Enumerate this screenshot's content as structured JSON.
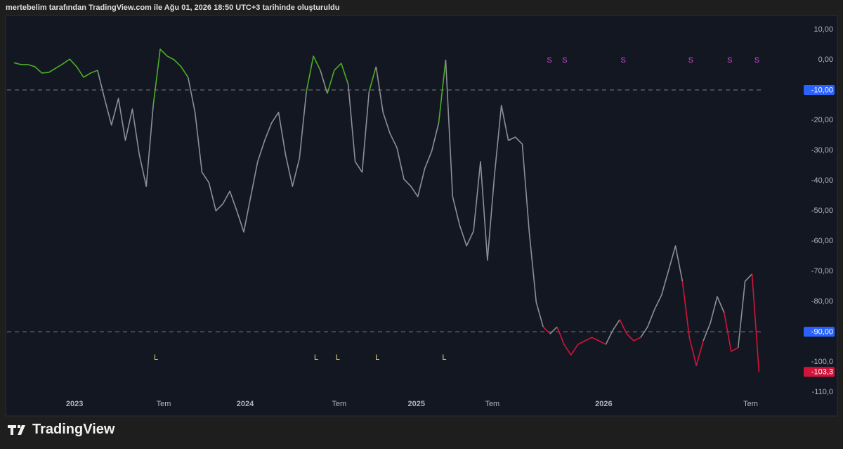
{
  "header": {
    "text": "mertebelim tarafından TradingView.com ile Ağu 01, 2026 18:50 UTC+3 tarihinde oluşturuldu"
  },
  "footer": {
    "brand": "TradingView"
  },
  "chart_data": {
    "type": "line",
    "values": [
      -1,
      -1.6,
      -1.6,
      -2.3,
      -4.4,
      -4.2,
      -2.8,
      -1.4,
      0.2,
      -2.3,
      -5.8,
      -4.4,
      -3.5,
      -12.8,
      -21.6,
      -12.8,
      -26.7,
      -16.3,
      -31.4,
      -41.9,
      -15.1,
      3.5,
      1.2,
      0,
      -2.3,
      -5.8,
      -17.4,
      -37.2,
      -40.7,
      -50,
      -47.7,
      -43.5,
      -50,
      -57,
      -45.3,
      -33.7,
      -26.7,
      -20.9,
      -17.4,
      -31.4,
      -41.9,
      -32.6,
      -10.5,
      1.2,
      -3.5,
      -11.2,
      -3.5,
      -1.2,
      -8.1,
      -33.7,
      -37.2,
      -10.5,
      -2.3,
      -17.4,
      -24.4,
      -29.1,
      -39.5,
      -41.9,
      -45.3,
      -36,
      -30.2,
      -20.9,
      0,
      -45.3,
      -54.7,
      -61.6,
      -56.7,
      -33.7,
      -66.3,
      -38.4,
      -15.1,
      -26.7,
      -25.6,
      -27.9,
      -57,
      -80.2,
      -88.4,
      -90.7,
      -88.4,
      -94.2,
      -97.7,
      -94.2,
      -93,
      -91.9,
      -93,
      -94.2,
      -89.5,
      -86,
      -90.7,
      -93,
      -91.9,
      -88.4,
      -82.6,
      -77.9,
      -69.8,
      -61.6,
      -73.3,
      -91.9,
      -101.2,
      -93,
      -87.2,
      -78.4,
      -83.7,
      -96.5,
      -95.3,
      -73.3,
      -70.9,
      -103.3
    ],
    "last_label": "-103,3",
    "upper": -10,
    "lower": -90,
    "colors": {
      "up": "#4caf22",
      "mid": "#8c8f96",
      "down": "#d1143a"
    },
    "hlines": [
      -10,
      -90
    ],
    "price_labels": [
      {
        "value": -10,
        "label": "-10,00",
        "color": "#2962ff"
      },
      {
        "value": -90,
        "label": "-90,00",
        "color": "#2962ff"
      }
    ],
    "xlim": [
      -1,
      112
    ],
    "xticks": [
      {
        "value": 8.7,
        "label": "2023"
      },
      {
        "value": 21.5,
        "label": "Tem"
      },
      {
        "value": 33.2,
        "label": "2024"
      },
      {
        "value": 46.7,
        "label": "Tem"
      },
      {
        "value": 57.8,
        "label": "2025"
      },
      {
        "value": 68.7,
        "label": "Tem"
      },
      {
        "value": 84.7,
        "label": "2026"
      },
      {
        "value": 105.8,
        "label": "Tem"
      }
    ],
    "ylim": [
      14.65,
      -111.6
    ],
    "yticks": [
      {
        "value": 10,
        "label": "10,00"
      },
      {
        "value": 0,
        "label": "0,00"
      },
      {
        "value": -10,
        "label": "-10,00"
      },
      {
        "value": -20,
        "label": "-20,00"
      },
      {
        "value": -30,
        "label": "-30,00"
      },
      {
        "value": -40,
        "label": "-40,00"
      },
      {
        "value": -50,
        "label": "-50,00"
      },
      {
        "value": -60,
        "label": "-60,00"
      },
      {
        "value": -70,
        "label": "-70,00"
      },
      {
        "value": -80,
        "label": "-80,00"
      },
      {
        "value": -90,
        "label": "-90,00"
      },
      {
        "value": -100,
        "label": "-100,0"
      },
      {
        "value": -110,
        "label": "-110,0"
      }
    ],
    "signals": [
      {
        "x": 20.4,
        "text": "L",
        "color": "#f5d76e",
        "side": "bottom"
      },
      {
        "x": 43.4,
        "text": "L",
        "color": "#f5d76e",
        "side": "bottom"
      },
      {
        "x": 46.5,
        "text": "L",
        "color": "#f5d76e",
        "side": "bottom"
      },
      {
        "x": 52.2,
        "text": "L",
        "color": "#f5d76e",
        "side": "bottom"
      },
      {
        "x": 61.8,
        "text": "L",
        "color": "#f5d76e",
        "side": "bottom"
      },
      {
        "x": 76.9,
        "text": "S",
        "color": "#d04ad8",
        "side": "top"
      },
      {
        "x": 79.1,
        "text": "S",
        "color": "#d04ad8",
        "side": "top"
      },
      {
        "x": 87.5,
        "text": "S",
        "color": "#d04ad8",
        "side": "top"
      },
      {
        "x": 97.2,
        "text": "S",
        "color": "#d04ad8",
        "side": "top"
      },
      {
        "x": 102.8,
        "text": "S",
        "color": "#d04ad8",
        "side": "top"
      },
      {
        "x": 106.7,
        "text": "S",
        "color": "#d04ad8",
        "side": "top"
      }
    ]
  }
}
